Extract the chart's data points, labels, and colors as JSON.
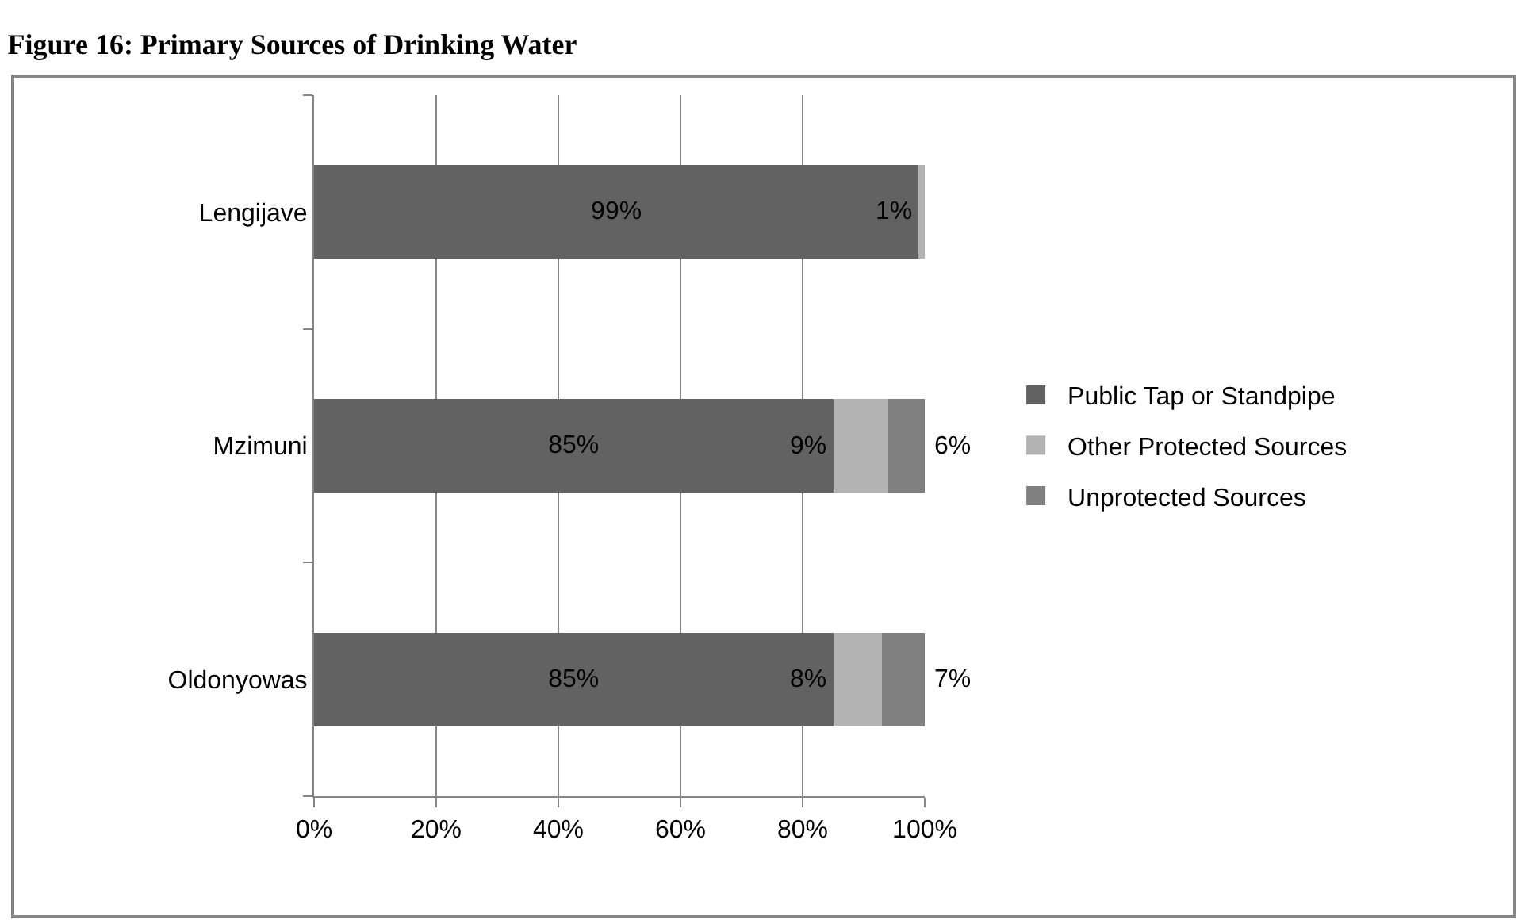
{
  "chart_data": {
    "type": "bar",
    "orientation": "horizontal",
    "stacked": true,
    "title": "Figure 16: Primary Sources of Drinking Water",
    "categories": [
      "Lengijave",
      "Mzimuni",
      "Oldonyowas"
    ],
    "series": [
      {
        "name": "Public Tap or Standpipe",
        "color": "#626262",
        "values": [
          99,
          85,
          85
        ],
        "value_labels": [
          "99%",
          "85%",
          "85%"
        ]
      },
      {
        "name": "Other Protected Sources",
        "color": "#b3b3b3",
        "values": [
          1,
          9,
          8
        ],
        "value_labels": [
          "1%",
          "9%",
          "8%"
        ]
      },
      {
        "name": "Unprotected Sources",
        "color": "#808080",
        "values": [
          0,
          6,
          7
        ],
        "value_labels": [
          null,
          "6%",
          "7%"
        ]
      }
    ],
    "xlim": [
      0,
      100
    ],
    "xticks": [
      {
        "value": 0,
        "label": "0%"
      },
      {
        "value": 20,
        "label": "20%"
      },
      {
        "value": 40,
        "label": "40%"
      },
      {
        "value": 60,
        "label": "60%"
      },
      {
        "value": 80,
        "label": "80%"
      },
      {
        "value": 100,
        "label": "100%"
      }
    ],
    "grid": "x",
    "legend": "right"
  }
}
